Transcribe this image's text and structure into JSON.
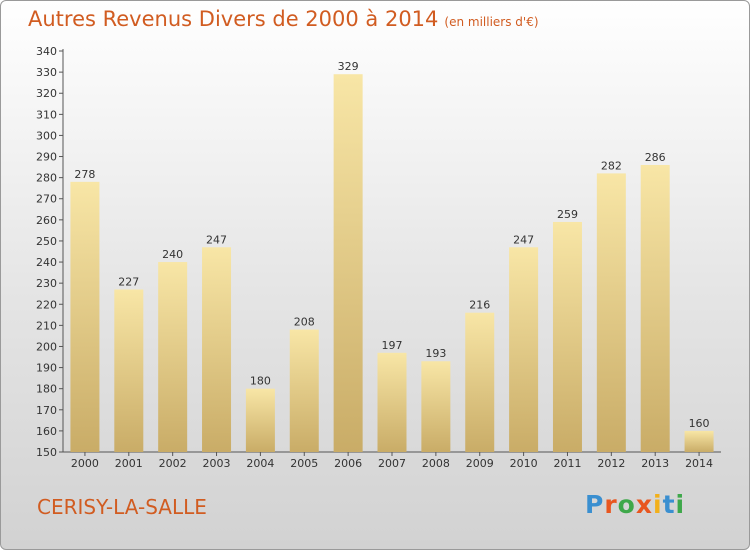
{
  "title": "Autres Revenus Divers de 2000 à 2014",
  "subtitle": "(en milliers d'€)",
  "location": "CERISY-LA-SALLE",
  "logo_text": "Proxiti",
  "logo_colors": [
    "#3a8fd0",
    "#e8561f",
    "#3ea84a",
    "#e8561f",
    "#f2b01b",
    "#3a8fd0",
    "#3ea84a"
  ],
  "colors": {
    "title": "#d15c21",
    "bar_light": "#f8e6a6",
    "bar_dark": "#c9ac67",
    "axis": "#555555"
  },
  "chart_data": {
    "type": "bar",
    "title": "Autres Revenus Divers de 2000 à 2014",
    "subtitle": "(en milliers d'€)",
    "xlabel": "",
    "ylabel": "",
    "categories": [
      "2000",
      "2001",
      "2002",
      "2003",
      "2004",
      "2005",
      "2006",
      "2007",
      "2008",
      "2009",
      "2010",
      "2011",
      "2012",
      "2013",
      "2014"
    ],
    "values": [
      278,
      227,
      240,
      247,
      180,
      208,
      329,
      197,
      193,
      216,
      247,
      259,
      282,
      286,
      160
    ],
    "ylim": [
      150,
      340
    ],
    "ytick_step": 10,
    "grid": false,
    "legend": "none"
  }
}
